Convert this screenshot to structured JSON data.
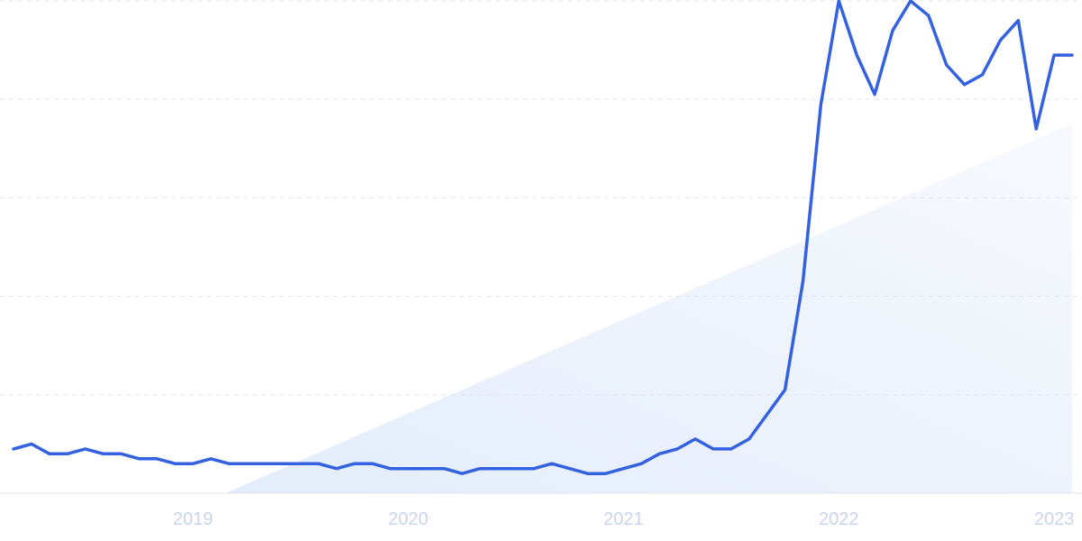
{
  "chart_data": {
    "type": "line",
    "categories": [
      null,
      null,
      null,
      null,
      null,
      null,
      null,
      null,
      null,
      null,
      "2019",
      null,
      null,
      null,
      null,
      null,
      null,
      null,
      null,
      null,
      null,
      null,
      "2020",
      null,
      null,
      null,
      null,
      null,
      null,
      null,
      null,
      null,
      null,
      null,
      "2021",
      null,
      null,
      null,
      null,
      null,
      null,
      null,
      null,
      null,
      null,
      null,
      "2022",
      null,
      null,
      null,
      null,
      null,
      null,
      null,
      null,
      null,
      null,
      null,
      "2023",
      null
    ],
    "values": [
      9,
      10,
      8,
      8,
      9,
      8,
      8,
      7,
      7,
      6,
      6,
      7,
      6,
      6,
      6,
      6,
      6,
      6,
      5,
      6,
      6,
      5,
      5,
      5,
      5,
      4,
      5,
      5,
      5,
      5,
      6,
      5,
      4,
      4,
      5,
      6,
      8,
      9,
      11,
      9,
      9,
      11,
      16,
      21,
      43,
      79,
      100,
      89,
      81,
      94,
      100,
      97,
      87,
      83,
      85,
      92,
      96,
      74,
      89,
      89
    ],
    "color": "#3461e0",
    "ylim": [
      0,
      100
    ],
    "yticks": [
      0,
      20,
      40,
      60,
      80,
      100
    ],
    "grid": true
  }
}
